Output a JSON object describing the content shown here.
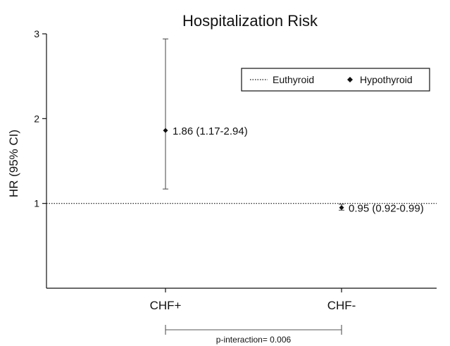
{
  "chart_data": {
    "type": "scatter",
    "title": "Hospitalization Risk",
    "ylabel": "HR (95% CI)",
    "xlabel": "",
    "categories": [
      "CHF+",
      "CHF-"
    ],
    "ylim": [
      0,
      3
    ],
    "yticks": [
      1,
      2,
      3
    ],
    "grid": false,
    "legend_position": "top-right",
    "reference_line": {
      "y": 1,
      "name": "Euthyroid",
      "style": "dotted"
    },
    "series": [
      {
        "name": "Hypothyroid",
        "points": [
          {
            "category": "CHF+",
            "value": 1.86,
            "lower": 1.17,
            "upper": 2.94,
            "label": "1.86 (1.17-2.94)"
          },
          {
            "category": "CHF-",
            "value": 0.95,
            "lower": 0.92,
            "upper": 0.99,
            "label": "0.95 (0.92-0.99)"
          }
        ]
      }
    ],
    "annotation": {
      "text": "p-interaction= 0.006",
      "from": "CHF+",
      "to": "CHF-"
    }
  }
}
